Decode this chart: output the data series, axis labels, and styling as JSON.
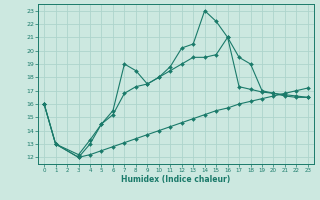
{
  "xlabel": "Humidex (Indice chaleur)",
  "xlim": [
    -0.5,
    23.5
  ],
  "ylim": [
    11.5,
    23.5
  ],
  "yticks": [
    12,
    13,
    14,
    15,
    16,
    17,
    18,
    19,
    20,
    21,
    22,
    23
  ],
  "xticks": [
    0,
    1,
    2,
    3,
    4,
    5,
    6,
    7,
    8,
    9,
    10,
    11,
    12,
    13,
    14,
    15,
    16,
    17,
    18,
    19,
    20,
    21,
    22,
    23
  ],
  "bg_color": "#cce8e0",
  "line_color": "#1a7a6a",
  "grid_color": "#aed4cc",
  "lines": [
    {
      "x": [
        0,
        1,
        3,
        4,
        5,
        6,
        7,
        8,
        9,
        10,
        11,
        12,
        13,
        14,
        15,
        16,
        17,
        18,
        19,
        20,
        21,
        22,
        23
      ],
      "y": [
        16,
        13,
        12,
        13,
        14.5,
        15.5,
        19,
        18.5,
        17.5,
        18,
        18.8,
        20.2,
        20.5,
        23,
        22.2,
        21,
        19.5,
        19,
        17,
        16.8,
        16.6,
        16.5,
        16.5
      ]
    },
    {
      "x": [
        0,
        1,
        3,
        4,
        5,
        6,
        7,
        8,
        9,
        10,
        11,
        12,
        13,
        14,
        15,
        16,
        17,
        18,
        19,
        20,
        21,
        22,
        23
      ],
      "y": [
        16,
        13,
        12.2,
        13.3,
        14.5,
        15.2,
        16.8,
        17.3,
        17.5,
        18,
        18.5,
        19,
        19.5,
        19.5,
        19.7,
        21.0,
        17.3,
        17.1,
        16.9,
        16.8,
        16.7,
        16.6,
        16.5
      ]
    },
    {
      "x": [
        0,
        1,
        3,
        4,
        5,
        6,
        7,
        8,
        9,
        10,
        11,
        12,
        13,
        14,
        15,
        16,
        17,
        18,
        19,
        20,
        21,
        22,
        23
      ],
      "y": [
        16,
        13,
        12.0,
        12.2,
        12.5,
        12.8,
        13.1,
        13.4,
        13.7,
        14.0,
        14.3,
        14.6,
        14.9,
        15.2,
        15.5,
        15.7,
        16.0,
        16.2,
        16.4,
        16.6,
        16.8,
        17.0,
        17.2
      ]
    }
  ]
}
